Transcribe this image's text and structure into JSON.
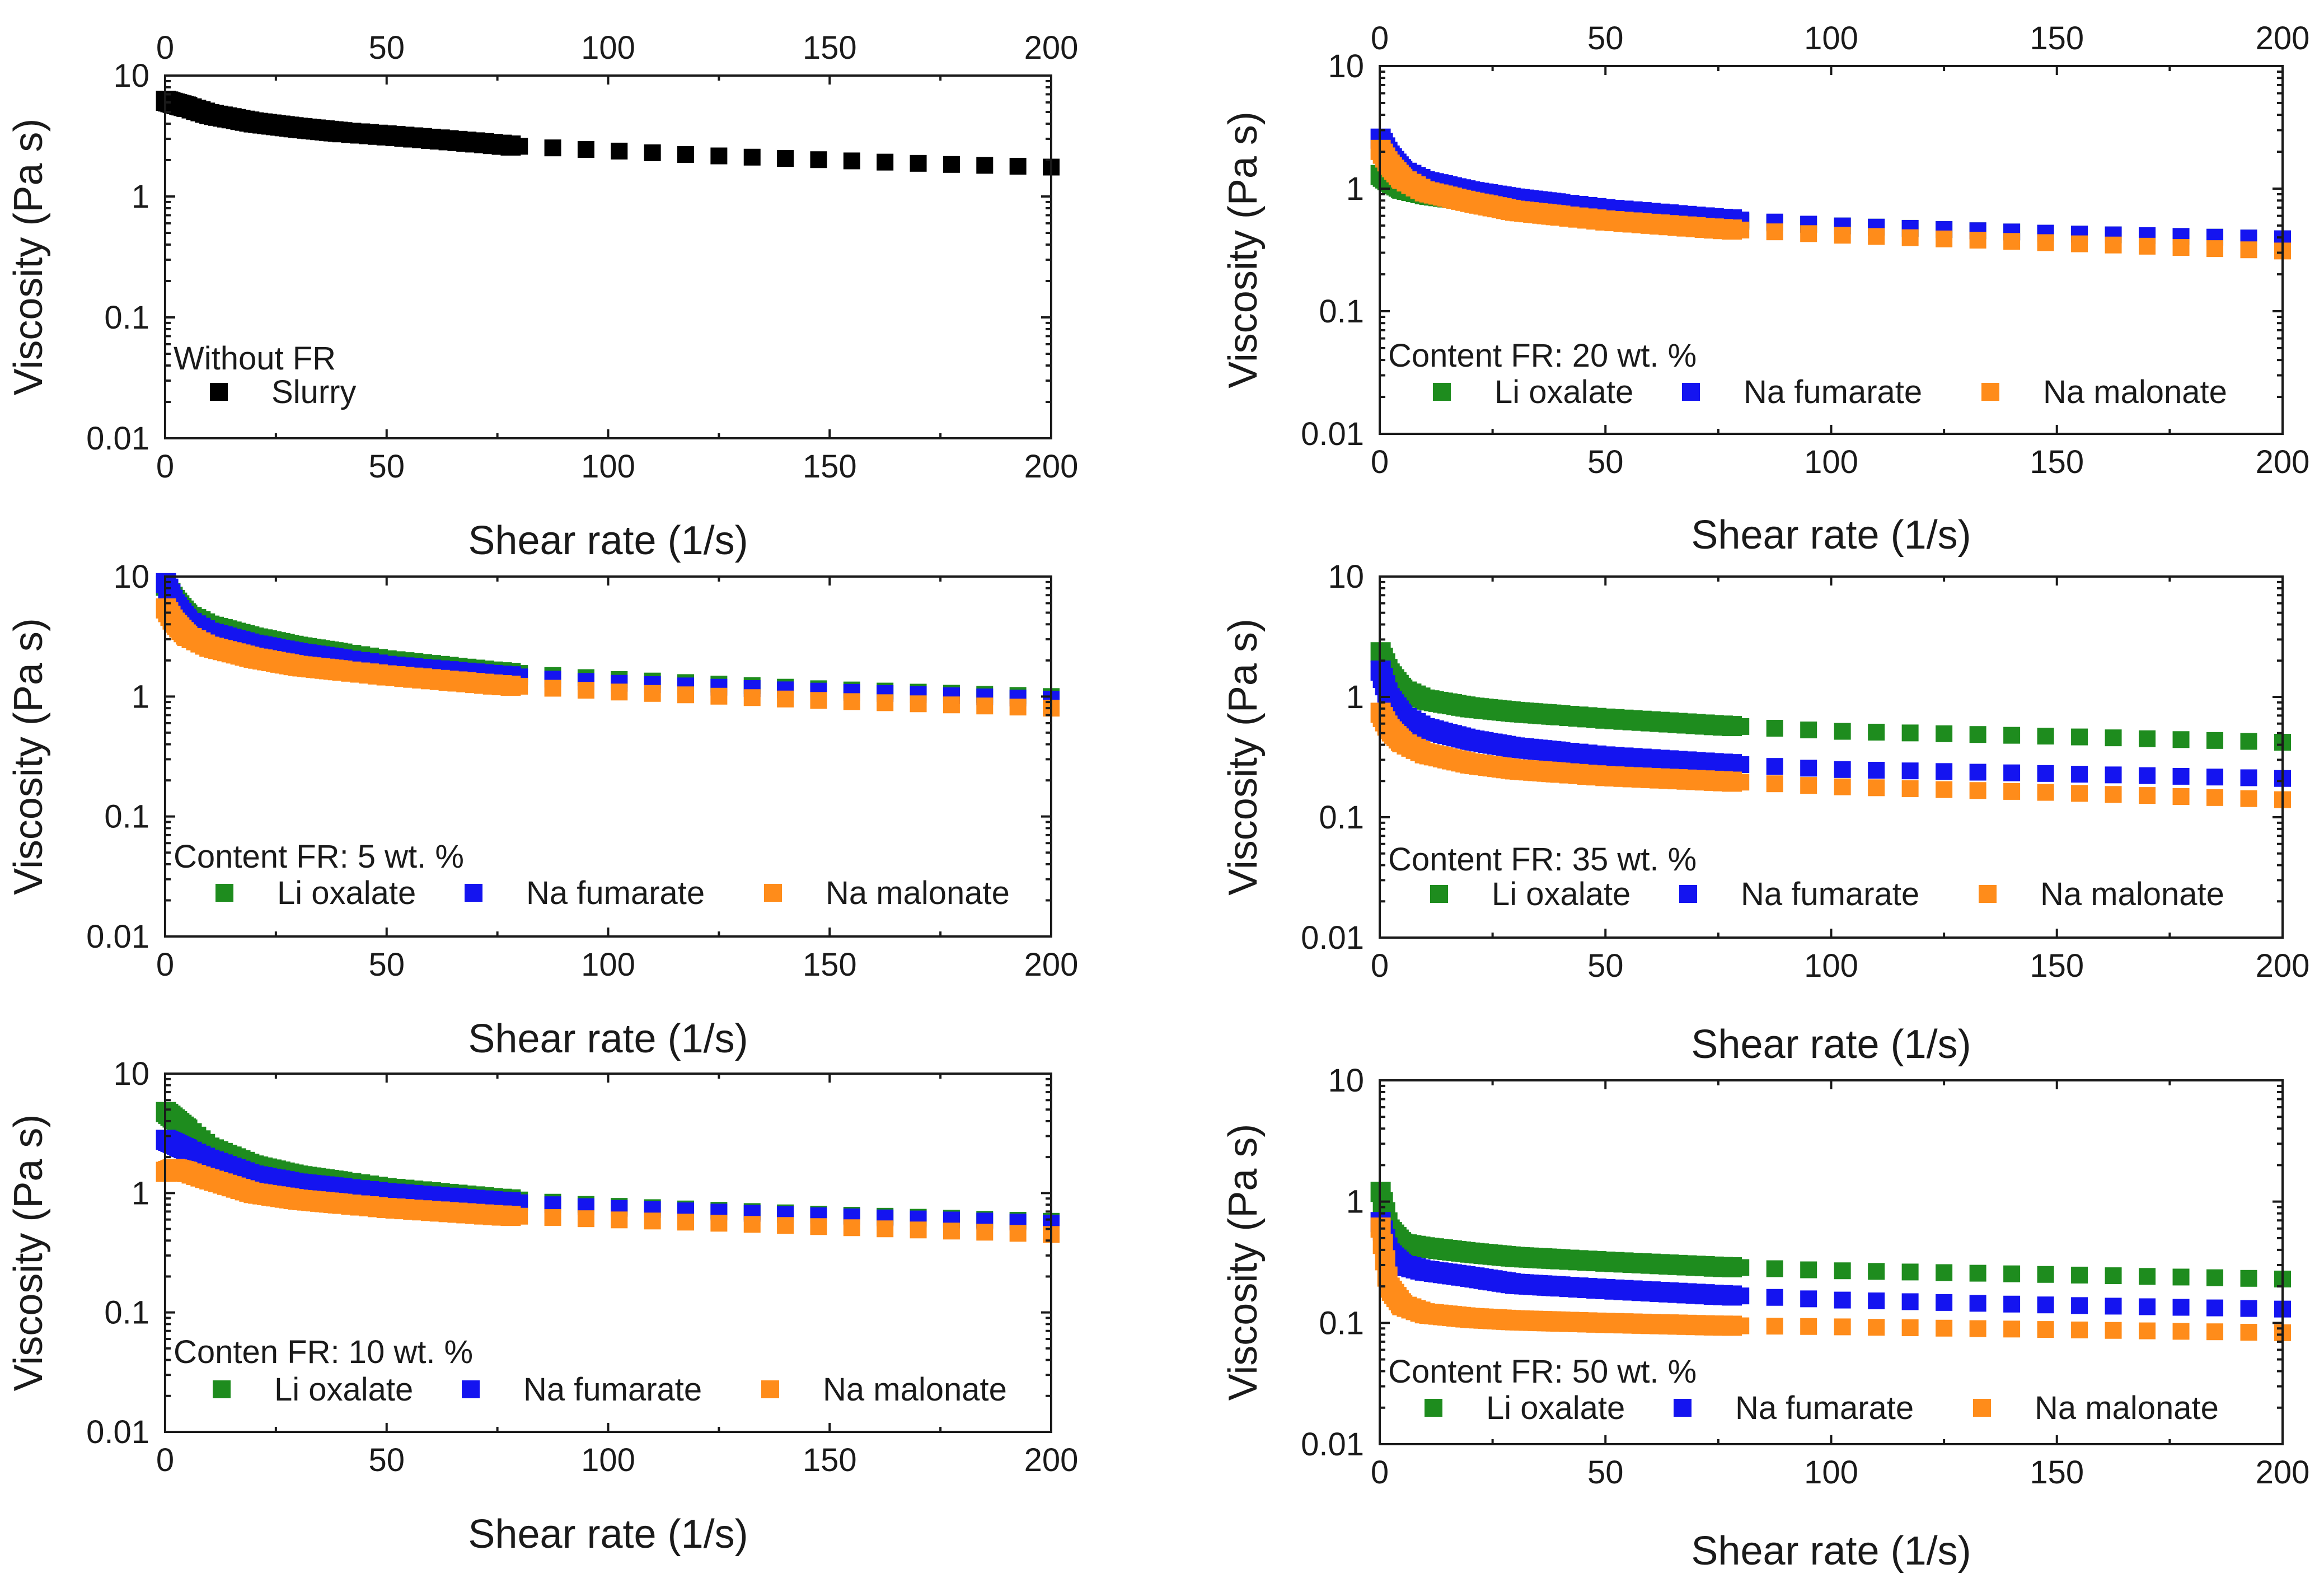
{
  "figure": {
    "x_tick_labels": [
      "0",
      "50",
      "100",
      "150",
      "200"
    ],
    "y_tick_labels": [
      "0.01",
      "0.1",
      "1",
      "10"
    ],
    "xlabel": "Shear rate (1/s)",
    "ylabel": "Viscosity (Pa s)"
  },
  "colors": {
    "Slurry": "#000000",
    "Li oxalate": "#1e8c1e",
    "Na fumarate": "#1414f0",
    "Na malonate": "#ff8c1a"
  },
  "chart_data": [
    {
      "type": "scatter",
      "title": "Without FR",
      "xlabel": "Shear rate (1/s)",
      "ylabel": "Viscosity (Pa s)",
      "xlim": [
        0,
        200
      ],
      "ylim": [
        0.01,
        10
      ],
      "yscale": "log",
      "legend_title": "Without FR",
      "series": [
        {
          "name": "Slurry",
          "color": "#000000",
          "anchors": [
            [
              0.1,
              6.2
            ],
            [
              2,
              5.9
            ],
            [
              5,
              5.5
            ],
            [
              10,
              4.8
            ],
            [
              20,
              4.1
            ],
            [
              30,
              3.7
            ],
            [
              40,
              3.4
            ],
            [
              50,
              3.2
            ],
            [
              60,
              3.0
            ],
            [
              70,
              2.8
            ],
            [
              80,
              2.6
            ],
            [
              100,
              2.4
            ],
            [
              120,
              2.2
            ],
            [
              150,
              2.0
            ],
            [
              175,
              1.85
            ],
            [
              200,
              1.75
            ]
          ]
        }
      ]
    },
    {
      "type": "scatter",
      "title": "Content FR: 20 wt. %",
      "xlabel": "Shear rate (1/s)",
      "ylabel": "Viscosity (Pa s)",
      "xlim": [
        0,
        200
      ],
      "ylim": [
        0.01,
        10
      ],
      "yscale": "log",
      "legend_title": "Content FR: 20 wt. %",
      "series": [
        {
          "name": "Li oxalate",
          "color": "#1e8c1e",
          "anchors": [
            [
              0.1,
              1.3
            ],
            [
              2,
              1.15
            ],
            [
              5,
              1.0
            ],
            [
              10,
              0.9
            ],
            [
              20,
              0.8
            ],
            [
              30,
              0.72
            ],
            [
              50,
              0.62
            ],
            [
              75,
              0.55
            ],
            [
              100,
              0.5
            ],
            [
              150,
              0.43
            ],
            [
              200,
              0.39
            ]
          ]
        },
        {
          "name": "Na fumarate",
          "color": "#1414f0",
          "anchors": [
            [
              0.1,
              2.6
            ],
            [
              2,
              1.9
            ],
            [
              5,
              1.4
            ],
            [
              10,
              1.15
            ],
            [
              20,
              0.95
            ],
            [
              30,
              0.83
            ],
            [
              50,
              0.68
            ],
            [
              75,
              0.57
            ],
            [
              100,
              0.5
            ],
            [
              150,
              0.43
            ],
            [
              200,
              0.39
            ]
          ]
        },
        {
          "name": "Na malonate",
          "color": "#ff8c1a",
          "anchors": [
            [
              0.1,
              2.1
            ],
            [
              2,
              1.6
            ],
            [
              5,
              1.2
            ],
            [
              10,
              0.95
            ],
            [
              20,
              0.78
            ],
            [
              30,
              0.66
            ],
            [
              50,
              0.55
            ],
            [
              75,
              0.47
            ],
            [
              100,
              0.42
            ],
            [
              150,
              0.36
            ],
            [
              200,
              0.31
            ]
          ]
        }
      ]
    },
    {
      "type": "scatter",
      "title": "Content FR: 5 wt. %",
      "xlabel": "Shear rate (1/s)",
      "ylabel": "Viscosity (Pa s)",
      "xlim": [
        0,
        200
      ],
      "ylim": [
        0.01,
        10
      ],
      "yscale": "log",
      "legend_title": "Content FR: 5 wt. %",
      "series": [
        {
          "name": "Li oxalate",
          "color": "#1e8c1e",
          "anchors": [
            [
              0.1,
              8.5
            ],
            [
              2,
              6.5
            ],
            [
              5,
              4.8
            ],
            [
              10,
              3.9
            ],
            [
              20,
              3.1
            ],
            [
              30,
              2.6
            ],
            [
              50,
              2.0
            ],
            [
              75,
              1.6
            ],
            [
              100,
              1.4
            ],
            [
              150,
              1.15
            ],
            [
              200,
              1.0
            ]
          ]
        },
        {
          "name": "Na fumarate",
          "color": "#1414f0",
          "anchors": [
            [
              0.1,
              9.0
            ],
            [
              2,
              6.0
            ],
            [
              5,
              4.3
            ],
            [
              10,
              3.4
            ],
            [
              20,
              2.7
            ],
            [
              30,
              2.3
            ],
            [
              50,
              1.8
            ],
            [
              75,
              1.5
            ],
            [
              100,
              1.3
            ],
            [
              150,
              1.1
            ],
            [
              200,
              0.95
            ]
          ]
        },
        {
          "name": "Na malonate",
          "color": "#ff8c1a",
          "anchors": [
            [
              0.1,
              5.5
            ],
            [
              2,
              4.2
            ],
            [
              5,
              3.2
            ],
            [
              10,
              2.6
            ],
            [
              20,
              2.1
            ],
            [
              30,
              1.8
            ],
            [
              50,
              1.5
            ],
            [
              75,
              1.25
            ],
            [
              100,
              1.1
            ],
            [
              150,
              0.92
            ],
            [
              200,
              0.8
            ]
          ]
        }
      ]
    },
    {
      "type": "scatter",
      "title": "Content FR: 35 wt. %",
      "xlabel": "Shear rate (1/s)",
      "ylabel": "Viscosity (Pa s)",
      "xlim": [
        0,
        200
      ],
      "ylim": [
        0.01,
        10
      ],
      "yscale": "log",
      "legend_title": "Content FR: 35 wt. %",
      "series": [
        {
          "name": "Li oxalate",
          "color": "#1e8c1e",
          "anchors": [
            [
              0.1,
              2.4
            ],
            [
              2,
              1.6
            ],
            [
              5,
              1.15
            ],
            [
              10,
              0.95
            ],
            [
              20,
              0.82
            ],
            [
              30,
              0.75
            ],
            [
              50,
              0.66
            ],
            [
              75,
              0.58
            ],
            [
              100,
              0.52
            ],
            [
              150,
              0.47
            ],
            [
              200,
              0.42
            ]
          ]
        },
        {
          "name": "Na fumarate",
          "color": "#1414f0",
          "anchors": [
            [
              0.1,
              1.7
            ],
            [
              2,
              1.0
            ],
            [
              5,
              0.7
            ],
            [
              10,
              0.55
            ],
            [
              20,
              0.44
            ],
            [
              30,
              0.38
            ],
            [
              50,
              0.32
            ],
            [
              75,
              0.28
            ],
            [
              100,
              0.25
            ],
            [
              150,
              0.23
            ],
            [
              200,
              0.21
            ]
          ]
        },
        {
          "name": "Na malonate",
          "color": "#ff8c1a",
          "anchors": [
            [
              0.1,
              0.75
            ],
            [
              2,
              0.55
            ],
            [
              5,
              0.42
            ],
            [
              10,
              0.34
            ],
            [
              20,
              0.28
            ],
            [
              30,
              0.25
            ],
            [
              50,
              0.22
            ],
            [
              75,
              0.2
            ],
            [
              100,
              0.18
            ],
            [
              150,
              0.16
            ],
            [
              200,
              0.14
            ]
          ]
        }
      ]
    },
    {
      "type": "scatter",
      "title": "Conten FR: 10 wt. %",
      "xlabel": "Shear rate (1/s)",
      "ylabel": "Viscosity (Pa s)",
      "xlim": [
        0,
        200
      ],
      "ylim": [
        0.01,
        10
      ],
      "yscale": "log",
      "legend_title": "Conten FR: 10 wt. %",
      "series": [
        {
          "name": "Li oxalate",
          "color": "#1e8c1e",
          "anchors": [
            [
              0.1,
              4.8
            ],
            [
              2,
              4.2
            ],
            [
              5,
              3.4
            ],
            [
              10,
              2.4
            ],
            [
              20,
              1.7
            ],
            [
              30,
              1.4
            ],
            [
              50,
              1.1
            ],
            [
              75,
              0.9
            ],
            [
              100,
              0.78
            ],
            [
              150,
              0.66
            ],
            [
              200,
              0.58
            ]
          ]
        },
        {
          "name": "Na fumarate",
          "color": "#1414f0",
          "anchors": [
            [
              0.1,
              2.8
            ],
            [
              2,
              2.6
            ],
            [
              5,
              2.3
            ],
            [
              10,
              1.9
            ],
            [
              20,
              1.4
            ],
            [
              30,
              1.2
            ],
            [
              50,
              1.0
            ],
            [
              75,
              0.85
            ],
            [
              100,
              0.75
            ],
            [
              150,
              0.64
            ],
            [
              200,
              0.56
            ]
          ]
        },
        {
          "name": "Na malonate",
          "color": "#ff8c1a",
          "anchors": [
            [
              0.1,
              1.5
            ],
            [
              2,
              1.6
            ],
            [
              5,
              1.5
            ],
            [
              10,
              1.3
            ],
            [
              20,
              1.0
            ],
            [
              30,
              0.88
            ],
            [
              50,
              0.75
            ],
            [
              75,
              0.65
            ],
            [
              100,
              0.6
            ],
            [
              150,
              0.52
            ],
            [
              200,
              0.45
            ]
          ]
        }
      ]
    },
    {
      "type": "scatter",
      "title": "Content FR: 50 wt. %",
      "xlabel": "Shear rate (1/s)",
      "ylabel": "Viscosity (Pa s)",
      "xlim": [
        0,
        200
      ],
      "ylim": [
        0.01,
        10
      ],
      "yscale": "log",
      "legend_title": "Content FR: 50 wt. %",
      "series": [
        {
          "name": "Li oxalate",
          "color": "#1e8c1e",
          "anchors": [
            [
              0.1,
              1.25
            ],
            [
              2,
              0.6
            ],
            [
              5,
              0.45
            ],
            [
              10,
              0.42
            ],
            [
              20,
              0.38
            ],
            [
              30,
              0.35
            ],
            [
              50,
              0.32
            ],
            [
              75,
              0.29
            ],
            [
              100,
              0.27
            ],
            [
              150,
              0.25
            ],
            [
              200,
              0.23
            ]
          ]
        },
        {
          "name": "Na fumarate",
          "color": "#1414f0",
          "anchors": [
            [
              0.1,
              0.7
            ],
            [
              2,
              0.38
            ],
            [
              5,
              0.3
            ],
            [
              10,
              0.27
            ],
            [
              20,
              0.24
            ],
            [
              30,
              0.21
            ],
            [
              50,
              0.19
            ],
            [
              75,
              0.17
            ],
            [
              100,
              0.155
            ],
            [
              150,
              0.14
            ],
            [
              200,
              0.13
            ]
          ]
        },
        {
          "name": "Na malonate",
          "color": "#ff8c1a",
          "anchors": [
            [
              0.1,
              0.65
            ],
            [
              2,
              0.2
            ],
            [
              5,
              0.14
            ],
            [
              10,
              0.12
            ],
            [
              20,
              0.11
            ],
            [
              30,
              0.105
            ],
            [
              50,
              0.1
            ],
            [
              75,
              0.095
            ],
            [
              100,
              0.093
            ],
            [
              150,
              0.088
            ],
            [
              200,
              0.083
            ]
          ]
        }
      ]
    }
  ]
}
